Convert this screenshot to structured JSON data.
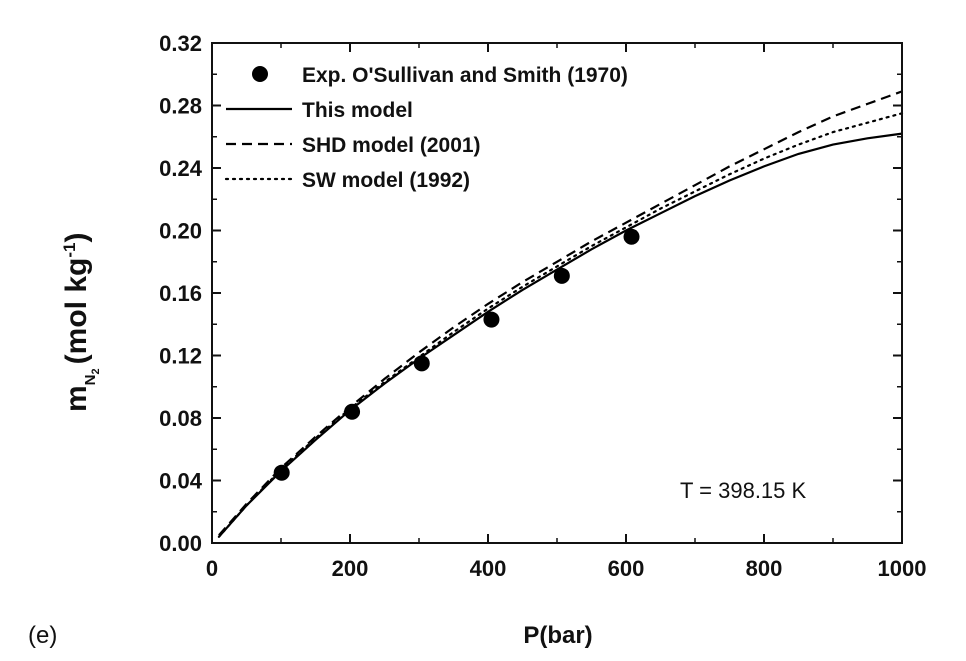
{
  "chart_data": {
    "type": "line",
    "panel_label": "(e)",
    "xlabel": "P(bar)",
    "ylabel_main": "m",
    "ylabel_sub": "N",
    "ylabel_subsub": "2",
    "ylabel_units": "(mol kg",
    "ylabel_units_sup": "-1",
    "ylabel_units_close": ")",
    "xlim": [
      0,
      1000
    ],
    "ylim": [
      0,
      0.32
    ],
    "xticks": [
      0,
      200,
      400,
      600,
      800,
      1000
    ],
    "xtick_labels": [
      "0",
      "200",
      "400",
      "600",
      "800",
      "1000"
    ],
    "yticks": [
      0,
      0.04,
      0.08,
      0.12,
      0.16,
      0.2,
      0.24,
      0.28,
      0.32
    ],
    "ytick_labels": [
      "0.00",
      "0.04",
      "0.08",
      "0.12",
      "0.16",
      "0.20",
      "0.24",
      "0.28",
      "0.32"
    ],
    "annotation": "T = 398.15 K",
    "legend_position": "top-left",
    "series": [
      {
        "name": "Exp. O'Sullivan and Smith (1970)",
        "kind": "scatter",
        "marker": "filled-circle",
        "color": "#000000",
        "x": [
          101,
          203,
          304,
          405,
          507,
          608
        ],
        "y": [
          0.045,
          0.084,
          0.115,
          0.143,
          0.171,
          0.196
        ]
      },
      {
        "name": "This model",
        "kind": "line",
        "dash": "solid",
        "color": "#000000",
        "x": [
          10,
          50,
          100,
          150,
          200,
          250,
          300,
          350,
          400,
          450,
          500,
          550,
          600,
          650,
          700,
          750,
          800,
          850,
          900,
          950,
          1000
        ],
        "y": [
          0.004,
          0.024,
          0.046,
          0.066,
          0.085,
          0.102,
          0.118,
          0.133,
          0.148,
          0.162,
          0.175,
          0.188,
          0.2,
          0.211,
          0.222,
          0.232,
          0.241,
          0.249,
          0.255,
          0.259,
          0.262
        ]
      },
      {
        "name": "SHD model (2001)",
        "kind": "line",
        "dash": "dashed",
        "color": "#000000",
        "x": [
          10,
          50,
          100,
          150,
          200,
          250,
          300,
          350,
          400,
          450,
          500,
          550,
          600,
          650,
          700,
          750,
          800,
          850,
          900,
          950,
          1000
        ],
        "y": [
          0.005,
          0.025,
          0.048,
          0.068,
          0.087,
          0.105,
          0.122,
          0.138,
          0.153,
          0.167,
          0.18,
          0.193,
          0.205,
          0.217,
          0.229,
          0.241,
          0.252,
          0.263,
          0.273,
          0.281,
          0.289
        ]
      },
      {
        "name": "SW model (1992)",
        "kind": "line",
        "dash": "dotted",
        "color": "#000000",
        "x": [
          10,
          50,
          100,
          150,
          200,
          250,
          300,
          350,
          400,
          450,
          500,
          550,
          600,
          650,
          700,
          750,
          800,
          850,
          900,
          950,
          1000
        ],
        "y": [
          0.004,
          0.024,
          0.047,
          0.067,
          0.086,
          0.103,
          0.119,
          0.135,
          0.15,
          0.164,
          0.177,
          0.19,
          0.202,
          0.214,
          0.225,
          0.236,
          0.246,
          0.255,
          0.263,
          0.269,
          0.275
        ]
      }
    ]
  }
}
